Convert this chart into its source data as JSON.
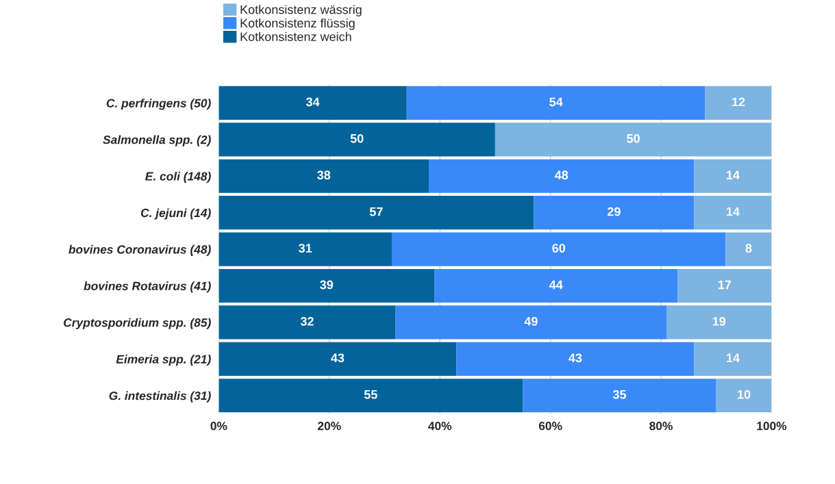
{
  "chart_data": {
    "type": "bar",
    "orientation": "horizontal",
    "stacked": true,
    "categories": [
      "C. perfringens (50)",
      "Salmonella spp. (2)",
      "E. coli (148)",
      "C. jejuni (14)",
      "bovines Coronavirus (48)",
      "bovines Rotavirus (41)",
      "Cryptosporidium spp. (85)",
      "Eimeria spp. (21)",
      "G. intestinalis (31)"
    ],
    "series": [
      {
        "name": "Kotkonsistenz weich",
        "color": "#02649a",
        "values": [
          34,
          50,
          38,
          57,
          31.3,
          39,
          32,
          43,
          55
        ],
        "value_labels": [
          "34",
          "50",
          "38",
          "57",
          "31",
          "39",
          "32",
          "43",
          "55"
        ]
      },
      {
        "name": "Kotkonsistenz flüssig",
        "color": "#3a89f9",
        "values": [
          54,
          0,
          48,
          29,
          60.4,
          44,
          49,
          43,
          35
        ],
        "value_labels": [
          "54",
          null,
          "48",
          "29",
          "60",
          "44",
          "49",
          "43",
          "35"
        ]
      },
      {
        "name": "Kotkonsistenz wässrig",
        "color": "#7cb4e2",
        "values": [
          12,
          50,
          14,
          14,
          8.3,
          17,
          19,
          14,
          10
        ],
        "value_labels": [
          "12",
          "50",
          "14",
          "14",
          "8",
          "17",
          "19",
          "14",
          "10"
        ]
      }
    ],
    "xlim": [
      0,
      100
    ],
    "xticks": [
      {
        "value": 0,
        "label": "0%"
      },
      {
        "value": 20,
        "label": "20%"
      },
      {
        "value": 40,
        "label": "40%"
      },
      {
        "value": 60,
        "label": "60%"
      },
      {
        "value": 80,
        "label": "80%"
      },
      {
        "value": 100,
        "label": "100%"
      }
    ],
    "grid": "x",
    "legend": "top left"
  }
}
